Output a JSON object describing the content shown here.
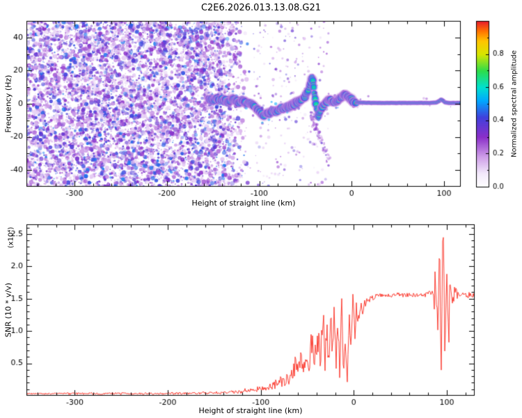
{
  "title": "C2E6.2026.013.13.08.G21",
  "chart_data": [
    {
      "type": "heatmap",
      "title": "C2E6.2026.013.13.08.G21",
      "xlabel": "Height of straight line (km)",
      "ylabel": "Frequency (Hz)",
      "xlim": [
        -352,
        118
      ],
      "ylim": [
        -50,
        50
      ],
      "xticks": [
        -300,
        -200,
        -100,
        0,
        100
      ],
      "xtick_labels": [
        "-300",
        "-200",
        "-100",
        "0",
        "100"
      ],
      "yticks": [
        -40,
        -20,
        0,
        20,
        40
      ],
      "ytick_labels": [
        "-40",
        "-20",
        "0",
        "20",
        "40"
      ],
      "grid": false,
      "colorbar": {
        "label": "Normalized spectral amplitude",
        "range": [
          0,
          1
        ],
        "ticks": [
          0,
          0.2,
          0.4,
          0.6,
          0.8
        ],
        "tick_labels": [
          "0.0",
          "0.2",
          "0.4",
          "0.6",
          "0.8"
        ]
      },
      "colormap_stops": [
        [
          0.0,
          "#ffffff"
        ],
        [
          0.08,
          "#f3eafb"
        ],
        [
          0.18,
          "#cf9fe9"
        ],
        [
          0.3,
          "#8b2fc9"
        ],
        [
          0.42,
          "#4040dd"
        ],
        [
          0.52,
          "#00a8ff"
        ],
        [
          0.6,
          "#00e0d0"
        ],
        [
          0.7,
          "#2edc4a"
        ],
        [
          0.8,
          "#d8e600"
        ],
        [
          0.88,
          "#ffc400"
        ],
        [
          0.94,
          "#ff7300"
        ],
        [
          1.0,
          "#e81b2e"
        ]
      ],
      "noise_field": {
        "x_range": [
          -352,
          -107
        ],
        "full_until": -140,
        "fade_until": -107,
        "sparse_until": -25,
        "freq_range": [
          -50,
          50
        ]
      },
      "tail": {
        "x_range": [
          -44,
          -24
        ],
        "f_range": [
          -6,
          -36
        ]
      },
      "signal_track": {
        "thin_from": 5,
        "points": [
          [
            -155,
            2,
            0.5
          ],
          [
            -152,
            3,
            0.55
          ],
          [
            -149,
            2,
            0.55
          ],
          [
            -146,
            4,
            0.6
          ],
          [
            -143,
            2,
            0.6
          ],
          [
            -140,
            3,
            0.6
          ],
          [
            -137,
            2,
            0.6
          ],
          [
            -134,
            1,
            0.55
          ],
          [
            -131,
            2,
            0.6
          ],
          [
            -128,
            3,
            0.6
          ],
          [
            -125,
            2,
            0.6
          ],
          [
            -122,
            1,
            0.6
          ],
          [
            -119,
            2,
            0.55
          ],
          [
            -116,
            1,
            0.6
          ],
          [
            -113,
            0,
            0.6
          ],
          [
            -110,
            1,
            0.55
          ],
          [
            -107,
            -1,
            0.6
          ],
          [
            -104,
            -2,
            0.6
          ],
          [
            -101,
            -4,
            0.6
          ],
          [
            -98,
            -6,
            0.6
          ],
          [
            -95,
            -7,
            0.6
          ],
          [
            -92,
            -5,
            0.6
          ],
          [
            -89,
            -6,
            0.6
          ],
          [
            -86,
            -4,
            0.6
          ],
          [
            -83,
            -5,
            0.6
          ],
          [
            -80,
            -4,
            0.6
          ],
          [
            -77,
            -3,
            0.6
          ],
          [
            -74,
            -3,
            0.6
          ],
          [
            -71,
            -2,
            0.6
          ],
          [
            -68,
            -2,
            0.6
          ],
          [
            -65,
            -1,
            0.6
          ],
          [
            -62,
            0,
            0.6
          ],
          [
            -59,
            1,
            0.6
          ],
          [
            -56,
            2,
            0.6
          ],
          [
            -53,
            3,
            0.6
          ],
          [
            -50,
            5,
            0.6
          ],
          [
            -48,
            7,
            0.6
          ],
          [
            -46,
            10,
            0.6
          ],
          [
            -44,
            13,
            0.6
          ],
          [
            -43,
            16,
            0.55
          ],
          [
            -42,
            13,
            0.55
          ],
          [
            -41,
            9,
            0.55
          ],
          [
            -40,
            5,
            0.6
          ],
          [
            -39,
            1,
            0.6
          ],
          [
            -38,
            -3,
            0.6
          ],
          [
            -37,
            -6,
            0.55
          ],
          [
            -36,
            -8,
            0.55
          ],
          [
            -35,
            -6,
            0.6
          ],
          [
            -34,
            -4,
            0.6
          ],
          [
            -33,
            -2,
            0.6
          ],
          [
            -31,
            -1,
            0.65
          ],
          [
            -29,
            0,
            0.7
          ],
          [
            -27,
            1,
            0.72
          ],
          [
            -25,
            2,
            0.75
          ],
          [
            -23,
            2,
            0.8
          ],
          [
            -21,
            1,
            0.85
          ],
          [
            -19,
            1,
            0.85
          ],
          [
            -17,
            2,
            0.85
          ],
          [
            -15,
            2,
            0.82
          ],
          [
            -13,
            3,
            0.8
          ],
          [
            -11,
            4,
            0.78
          ],
          [
            -9,
            5,
            0.72
          ],
          [
            -7,
            6,
            0.7
          ],
          [
            -5,
            5,
            0.68
          ],
          [
            -3,
            4,
            0.68
          ],
          [
            -1,
            3,
            0.72
          ],
          [
            1,
            2,
            0.8
          ],
          [
            3,
            1,
            0.85
          ],
          [
            5,
            1,
            0.9
          ],
          [
            8,
            0.8,
            0.95
          ],
          [
            15,
            0.6,
            0.95
          ],
          [
            30,
            0.5,
            0.95
          ],
          [
            50,
            0.5,
            0.95
          ],
          [
            70,
            0.5,
            0.95
          ],
          [
            85,
            0.5,
            0.95
          ],
          [
            92,
            0.8,
            0.9
          ],
          [
            95,
            1.8,
            0.85
          ],
          [
            97,
            2.6,
            0.85
          ],
          [
            99,
            1.8,
            0.85
          ],
          [
            101,
            0.8,
            0.9
          ],
          [
            105,
            0.5,
            0.95
          ],
          [
            112,
            0.5,
            0.95
          ],
          [
            118.5,
            0.5,
            0.95
          ]
        ]
      }
    },
    {
      "type": "line",
      "xlabel": "Height of straight line (km)",
      "ylabel": "SNR (10 * v/v)",
      "scale_note": "(x10⁴)",
      "xlim": [
        -352,
        130
      ],
      "ylim": [
        0,
        2.65
      ],
      "xticks": [
        -300,
        -200,
        -100,
        0,
        100
      ],
      "xtick_labels": [
        "-300",
        "-200",
        "-100",
        "0",
        "100"
      ],
      "yticks": [
        0.5,
        1.0,
        1.5,
        2.0,
        2.5
      ],
      "ytick_labels": [
        "0.5",
        "1.0",
        "1.5",
        "2.0",
        "2.5"
      ],
      "grid": false,
      "line_color": "#fb2a1e",
      "points": [
        [
          -352,
          0.03,
          0.015
        ],
        [
          -335,
          0.03,
          0.015
        ],
        [
          -318,
          0.035,
          0.015
        ],
        [
          -300,
          0.03,
          0.02
        ],
        [
          -285,
          0.035,
          0.02
        ],
        [
          -270,
          0.03,
          0.015
        ],
        [
          -255,
          0.035,
          0.02
        ],
        [
          -240,
          0.03,
          0.015
        ],
        [
          -225,
          0.035,
          0.02
        ],
        [
          -210,
          0.03,
          0.015
        ],
        [
          -195,
          0.035,
          0.02
        ],
        [
          -180,
          0.035,
          0.02
        ],
        [
          -165,
          0.04,
          0.02
        ],
        [
          -150,
          0.045,
          0.025
        ],
        [
          -138,
          0.05,
          0.03
        ],
        [
          -128,
          0.055,
          0.03
        ],
        [
          -120,
          0.065,
          0.035
        ],
        [
          -114,
          0.09,
          0.045
        ],
        [
          -110,
          0.075,
          0.04
        ],
        [
          -106,
          0.09,
          0.045
        ],
        [
          -102,
          0.11,
          0.05
        ],
        [
          -98,
          0.1,
          0.05
        ],
        [
          -94,
          0.12,
          0.06
        ],
        [
          -90,
          0.14,
          0.07
        ],
        [
          -86,
          0.16,
          0.08
        ],
        [
          -82,
          0.19,
          0.09
        ],
        [
          -78,
          0.22,
          0.11
        ],
        [
          -74,
          0.26,
          0.13
        ],
        [
          -70,
          0.24,
          0.12
        ],
        [
          -66,
          0.3,
          0.15
        ],
        [
          -63,
          0.45,
          0.2
        ],
        [
          -60,
          0.32,
          0.16
        ],
        [
          -57,
          0.52,
          0.24
        ],
        [
          -54,
          0.38,
          0.18
        ],
        [
          -51,
          0.68,
          0.28
        ],
        [
          -48,
          0.45,
          0.22
        ],
        [
          -45,
          0.85,
          0.3
        ],
        [
          -42,
          0.5,
          0.25
        ],
        [
          -39,
          0.95,
          0.32
        ],
        [
          -36,
          0.55,
          0.26
        ],
        [
          -33,
          1.32,
          0.25
        ],
        [
          -31,
          0.6,
          0.28
        ],
        [
          -29,
          1.05,
          0.32
        ],
        [
          -27,
          0.45,
          0.22
        ],
        [
          -25,
          1.2,
          0.3
        ],
        [
          -23,
          0.7,
          0.3
        ],
        [
          -21,
          1.42,
          0.22
        ],
        [
          -19,
          0.55,
          0.26
        ],
        [
          -17,
          1.1,
          0.32
        ],
        [
          -15,
          0.3,
          0.15
        ],
        [
          -13,
          1.48,
          0.2
        ],
        [
          -11,
          0.25,
          0.13
        ],
        [
          -9,
          0.85,
          0.3
        ],
        [
          -7,
          0.2,
          0.1
        ],
        [
          -5,
          1.3,
          0.25
        ],
        [
          -3,
          0.6,
          0.26
        ],
        [
          -1,
          1.45,
          0.18
        ],
        [
          1,
          0.95,
          0.25
        ],
        [
          3,
          1.35,
          0.18
        ],
        [
          5,
          1.2,
          0.16
        ],
        [
          7,
          1.38,
          0.12
        ],
        [
          9,
          1.3,
          0.12
        ],
        [
          11,
          1.42,
          0.1
        ],
        [
          14,
          1.46,
          0.08
        ],
        [
          17,
          1.5,
          0.06
        ],
        [
          21,
          1.52,
          0.05
        ],
        [
          26,
          1.54,
          0.04
        ],
        [
          31,
          1.55,
          0.04
        ],
        [
          36,
          1.56,
          0.04
        ],
        [
          41,
          1.55,
          0.04
        ],
        [
          46,
          1.57,
          0.04
        ],
        [
          51,
          1.56,
          0.04
        ],
        [
          56,
          1.55,
          0.04
        ],
        [
          61,
          1.56,
          0.04
        ],
        [
          66,
          1.55,
          0.04
        ],
        [
          71,
          1.57,
          0.04
        ],
        [
          76,
          1.56,
          0.04
        ],
        [
          80,
          1.57,
          0.05
        ],
        [
          84,
          1.6,
          0.07
        ],
        [
          86,
          1.3,
          0.28
        ],
        [
          88,
          1.95,
          0.35
        ],
        [
          90,
          0.9,
          0.4
        ],
        [
          92,
          2.3,
          0.33
        ],
        [
          94,
          0.65,
          0.4
        ],
        [
          96,
          2.52,
          0.3
        ],
        [
          98,
          0.6,
          0.42
        ],
        [
          100,
          2.15,
          0.35
        ],
        [
          102,
          1.0,
          0.38
        ],
        [
          104,
          1.85,
          0.3
        ],
        [
          106,
          1.35,
          0.22
        ],
        [
          108,
          1.65,
          0.14
        ],
        [
          111,
          1.56,
          0.08
        ],
        [
          115,
          1.58,
          0.06
        ],
        [
          120,
          1.55,
          0.05
        ],
        [
          126,
          1.56,
          0.05
        ],
        [
          130,
          1.55,
          0.05
        ]
      ]
    }
  ]
}
